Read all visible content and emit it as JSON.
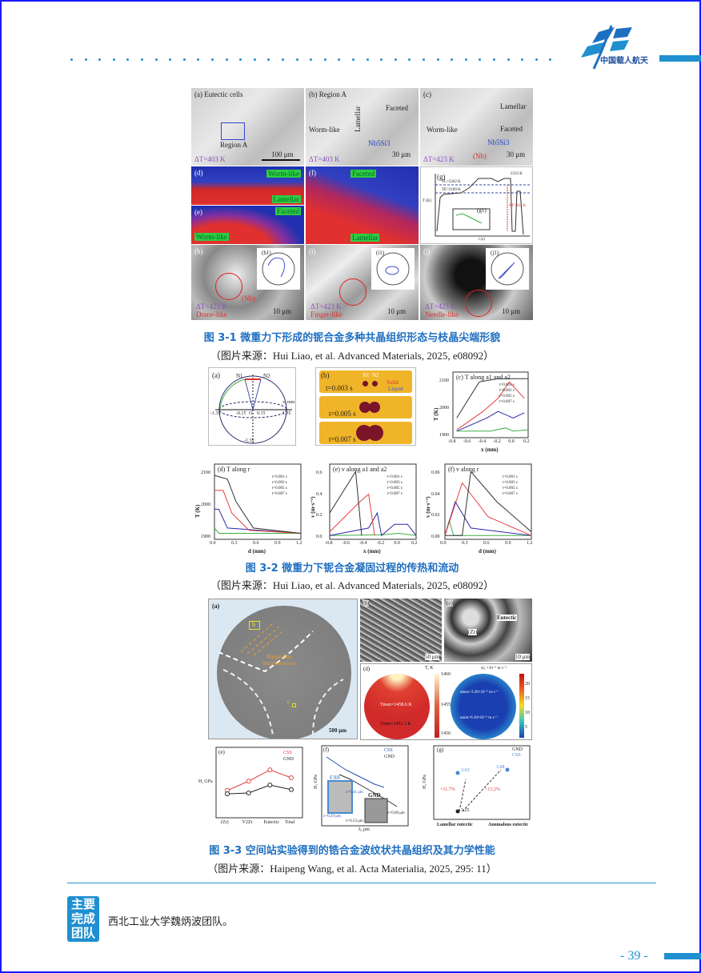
{
  "header": {
    "logo_text": "中国载人航天",
    "accent": "#1f8fd0"
  },
  "figure1": {
    "caption": "图 3-1 微重力下形成的铌合金多种共晶组织形态与枝晶尖端形貌",
    "source": "（图片来源：Hui Liao, et al. Advanced Materials, 2025, e08092）",
    "a": {
      "title": "(a) Eutectic cells",
      "region": "Region A",
      "dt": "ΔT=403 K",
      "scale": "100 μm"
    },
    "b": {
      "title": "(b) Region A",
      "worm": "Worm-like",
      "lamellar": "Lamellar",
      "faceted": "Faceted",
      "phase": "Nb5Si3",
      "dt": "ΔT=403 K",
      "scale": "30 μm"
    },
    "c": {
      "title": "(c)",
      "lamellar": "Lamellar",
      "worm": "Worm-like",
      "faceted": "Faceted",
      "phase": "Nb5Si3",
      "nb": "(Nb)",
      "dt": "ΔT=423 K",
      "scale": "30 μm"
    },
    "d": {
      "title": "(d)",
      "worm": "Worm-like",
      "lamellar": "Lamellar"
    },
    "e": {
      "title": "(e)",
      "faceted": "Faceted",
      "worm": "Worm-like"
    },
    "f": {
      "title": "(f)",
      "faceted": "Faceted",
      "lamellar": "Lamellar"
    },
    "g": {
      "title": "(g)",
      "inset": "(g1)",
      "peak": "2333 K",
      "l1": "TL=2262 K",
      "l2": "TE=2189 K",
      "dt": "ΔT=423 K",
      "ylabel": "T (K)",
      "xlabel": "t (s)"
    },
    "h": {
      "title": "(h)",
      "inset": "(h1)",
      "nb": "(Nb)",
      "dt": "ΔT=423 K",
      "shape": "Dome-like",
      "scale": "10 μm"
    },
    "i": {
      "title": "(i)",
      "inset": "(i1)",
      "dt": "ΔT=423 K",
      "shape": "Finger-like",
      "scale": "10 μm"
    },
    "j": {
      "title": "(j)",
      "inset": "(j1)",
      "dt": "ΔT=423 K",
      "shape": "Needle-like",
      "scale": "10 μm"
    }
  },
  "figure2": {
    "caption": "图 3-2 微重力下铌合金凝固过程的传热和流动",
    "source": "（图片来源：Hui Liao, et al. Advanced Materials, 2025, e08092）",
    "a": {
      "title": "(a)",
      "n1": "N1",
      "n2": "N2",
      "t1": "-1.35",
      "t2": "-0.15",
      "t3": "0.15",
      "t4": "1.35",
      "t5": "-1.35",
      "xmm": "x, mm",
      "o": "O"
    },
    "b": {
      "title": "(b)",
      "n1": "N1",
      "n2": "N2",
      "solid": "Solid",
      "liquid": "Liquid",
      "times": [
        "t=0.003 s",
        "t=0.005 s",
        "t=0.007 s"
      ]
    },
    "c": {
      "title": "(c) T along a1 and a2",
      "ylabel": "T (K)",
      "xlabel": "x (mm)",
      "xticks": [
        "-0.8",
        "-0.6",
        "-0.4",
        "-0.2",
        "0.0",
        "0.2"
      ],
      "yticks": [
        "2100",
        "2000",
        "1900"
      ]
    },
    "d": {
      "title": "(d) T along r",
      "ylabel": "T (K)",
      "xlabel": "d (mm)",
      "xticks": [
        "0.0",
        "0.3",
        "0.6",
        "0.9",
        "1.2"
      ],
      "yticks": [
        "2100",
        "2000",
        "1900"
      ]
    },
    "e": {
      "title": "(e) v along a1 and a2",
      "ylabel": "v (m·s⁻¹)",
      "xlabel": "x (mm)",
      "xticks": [
        "-0.8",
        "-0.6",
        "-0.4",
        "-0.2",
        "0.0",
        "0.2"
      ],
      "yticks": [
        "0.6",
        "0.4",
        "0.2",
        "0.0"
      ]
    },
    "f": {
      "title": "(f) v along r",
      "ylabel": "v (m·s⁻¹)",
      "xlabel": "d (mm)",
      "xticks": [
        "0.0",
        "0.3",
        "0.6",
        "0.9",
        "1.2"
      ],
      "yticks": [
        "0.06",
        "0.04",
        "0.02",
        "0.00"
      ]
    },
    "legend": [
      "t=0.001 s",
      "t=0.003 s",
      "t=0.005 s",
      "t=0.007 s"
    ],
    "series_colors": [
      "#3cb043",
      "#2a2aa8",
      "#e84040",
      "#333333"
    ]
  },
  "figure3": {
    "caption": "图 3-3 空间站实验得到的锆合金波纹状共晶组织及其力学性能",
    "source": "（图片来源：Haipeng Wang, et al. Acta Materialia, 2025, 295: 11）",
    "a": {
      "title": "(a)",
      "b": "b",
      "c": "c",
      "ripple": "Ripple-like microstructure",
      "scale": "500 μm"
    },
    "b": {
      "title": "(b)",
      "scale": "50 μm"
    },
    "c": {
      "title": "(c)",
      "eutectic": "Eutectic",
      "zr": "(Zr)",
      "scale": "10 μm"
    },
    "d": {
      "title": "(d)",
      "tlabel": "T, K",
      "tmax": "Tmax=1458.6 K",
      "tmin": "Tmin=1451.3 K",
      "tticks": [
        "1460",
        "1455",
        "1450"
      ],
      "ulabel": "|u|, ×10⁻⁵ m·s⁻¹",
      "umax": "umax=3.36×10⁻⁵ m·s⁻¹",
      "umin": "umin=6.10×10⁻⁶ m·s⁻¹",
      "uticks": [
        "20",
        "15",
        "10",
        "5"
      ]
    },
    "e": {
      "title": "(e)",
      "ylabel": "H, GPa",
      "cats": [
        "(Zr)",
        "V2Zr",
        "Eutectic",
        "Total"
      ],
      "legend": [
        "CSS",
        "GND"
      ],
      "css": [
        4.47,
        4.8,
        5.2,
        4.92
      ],
      "gnd": [
        4.35,
        4.38,
        4.66,
        4.5
      ]
    },
    "f": {
      "title": "(f)",
      "ylabel": "H, GPa",
      "xlabel": "λ, μm",
      "legend": [
        "CSS",
        "GND"
      ],
      "css": "CSS",
      "gnd": "GND",
      "l1": "λ=0.41 μm",
      "l2": "λ=0.29 μm",
      "l3": "λ=0.53 μm",
      "l4": "λ=0.60 μm"
    },
    "g": {
      "title": "(g)",
      "ylabel": "H, GPa",
      "legend": [
        "GND",
        "CSS"
      ],
      "cats": [
        "Lamellar eutectic",
        "Anomalous eutectic"
      ],
      "v1": "3.63",
      "v2": "3.68",
      "v3": "3.25",
      "p1": "+11.7%",
      "p2": "+13.2%"
    }
  },
  "footer": {
    "badge": [
      "主要",
      "完成",
      "团队"
    ],
    "team": "西北工业大学魏炳波团队。",
    "page": "- 39 -"
  }
}
